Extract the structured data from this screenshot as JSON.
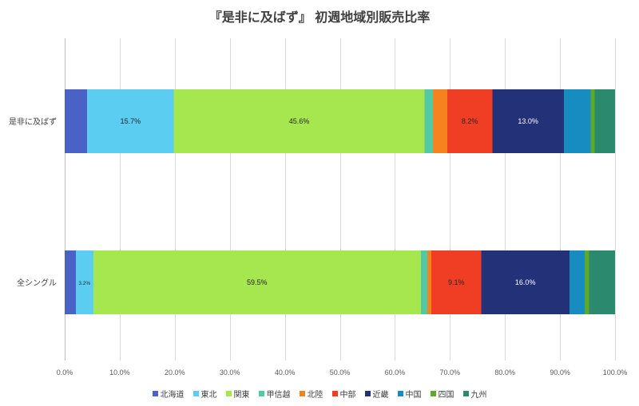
{
  "chart_data": {
    "type": "bar",
    "orientation": "horizontal",
    "stacking": "percent",
    "title": "『是非に及ばず』 初週地域別販売比率",
    "categories": [
      "是非に及ばず",
      "全シングル"
    ],
    "series": [
      {
        "name": "北海道",
        "color": "#4a61c6",
        "values": [
          4.1,
          2.0
        ],
        "labels": [
          null,
          null
        ]
      },
      {
        "name": "東北",
        "color": "#5bcdf1",
        "values": [
          15.7,
          3.2
        ],
        "labels": [
          "15.7%",
          "3.2%"
        ],
        "label_color": "#262626"
      },
      {
        "name": "関東",
        "color": "#a6e64f",
        "values": [
          45.6,
          59.5
        ],
        "labels": [
          "45.6%",
          "59.5%"
        ],
        "label_color": "#262626"
      },
      {
        "name": "甲信越",
        "color": "#52c9a5",
        "values": [
          1.5,
          1.2
        ],
        "labels": [
          null,
          null
        ]
      },
      {
        "name": "北陸",
        "color": "#f5821f",
        "values": [
          2.6,
          0.7
        ],
        "labels": [
          null,
          null
        ]
      },
      {
        "name": "中部",
        "color": "#ef3e24",
        "values": [
          8.2,
          9.1
        ],
        "labels": [
          "8.2%",
          "9.1%"
        ],
        "label_color": "#262626"
      },
      {
        "name": "近畿",
        "color": "#233278",
        "values": [
          13.0,
          16.0
        ],
        "labels": [
          "13.0%",
          "16.0%"
        ],
        "label_color": "#ffffff"
      },
      {
        "name": "中国",
        "color": "#168cc1",
        "values": [
          4.9,
          2.8
        ],
        "labels": [
          null,
          null
        ]
      },
      {
        "name": "四国",
        "color": "#5ea92b",
        "values": [
          0.7,
          0.8
        ],
        "labels": [
          null,
          null
        ]
      },
      {
        "name": "九州",
        "color": "#2b8a6d",
        "values": [
          3.7,
          4.7
        ],
        "labels": [
          null,
          null
        ]
      }
    ],
    "xlim": [
      0,
      100
    ],
    "x_tick_labels": [
      "0.0%",
      "10.0%",
      "20.0%",
      "30.0%",
      "40.0%",
      "50.0%",
      "60.0%",
      "70.0%",
      "80.0%",
      "90.0%",
      "100.0%"
    ],
    "xlabel": "",
    "ylabel": "",
    "grid": "vertical",
    "legend": "bottom"
  }
}
